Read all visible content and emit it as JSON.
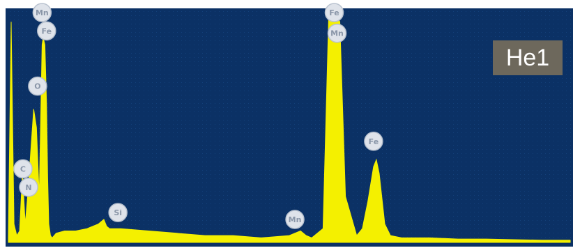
{
  "chart_data": {
    "type": "line",
    "title": "",
    "xlabel": "",
    "ylabel": "",
    "xlim": [
      0,
      10
    ],
    "ylim": [
      0,
      100
    ],
    "grid": false,
    "legend": "none",
    "colors": {
      "background": "#0b3165",
      "spectrum": "#f4f000",
      "tag_background": "#6d685c",
      "tag_text": "#ffffff",
      "label_badge": "#dfe3ea"
    },
    "sample_label": "He1",
    "series": [
      {
        "x": [
          0.0,
          0.05,
          0.1,
          0.15,
          0.2,
          0.25,
          0.3,
          0.35,
          0.4,
          0.45,
          0.5,
          0.55,
          0.6,
          0.62,
          0.65,
          0.68,
          0.7,
          0.72,
          0.75,
          0.78,
          0.85,
          1.0,
          1.2,
          1.4,
          1.6,
          1.7,
          1.75,
          1.8,
          2.0,
          2.5,
          3.0,
          3.5,
          4.0,
          4.5,
          5.0,
          5.2,
          5.3,
          5.4,
          5.6,
          5.7,
          5.8,
          5.9,
          6.0,
          6.2,
          6.3,
          6.4,
          6.5,
          6.55,
          6.6,
          6.7,
          6.8,
          7.0,
          7.5,
          8.0,
          8.5,
          9.0,
          9.5,
          10.0
        ],
        "y": [
          2,
          96,
          8,
          3,
          5,
          30,
          8,
          22,
          40,
          58,
          50,
          20,
          86,
          89,
          86,
          60,
          28,
          8,
          3,
          2,
          4,
          5,
          5,
          6,
          8,
          10,
          7,
          6,
          6,
          5,
          4,
          3,
          3,
          2,
          3,
          5,
          3,
          2,
          6,
          97,
          100,
          96,
          20,
          3,
          6,
          18,
          33,
          36,
          30,
          8,
          3,
          2,
          2,
          1.5,
          1.5,
          1.2,
          1,
          1
        ]
      }
    ],
    "annotations": [
      {
        "text": "Mn",
        "x": 0.6,
        "y": 100
      },
      {
        "text": "Fe",
        "x": 0.68,
        "y": 92
      },
      {
        "text": "O",
        "x": 0.52,
        "y": 68
      },
      {
        "text": "C",
        "x": 0.26,
        "y": 32
      },
      {
        "text": "N",
        "x": 0.36,
        "y": 24
      },
      {
        "text": "Si",
        "x": 1.95,
        "y": 13
      },
      {
        "text": "Mn",
        "x": 5.1,
        "y": 10
      },
      {
        "text": "Fe",
        "x": 5.8,
        "y": 100
      },
      {
        "text": "Mn",
        "x": 5.85,
        "y": 91
      },
      {
        "text": "Fe",
        "x": 6.5,
        "y": 44
      }
    ]
  }
}
